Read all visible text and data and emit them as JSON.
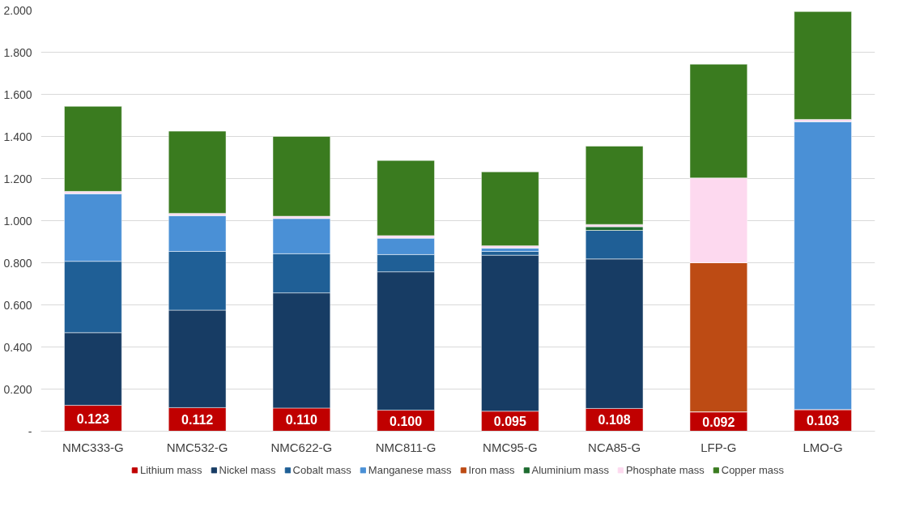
{
  "chart_data": {
    "type": "bar",
    "stacked": true,
    "categories": [
      "NMC333-G",
      "NMC532-G",
      "NMC622-G",
      "NMC811-G",
      "NMC95-G",
      "NCA85-G",
      "LFP-G",
      "LMO-G"
    ],
    "series": [
      {
        "name": "Lithium mass",
        "color": "#c00000",
        "values": [
          0.123,
          0.112,
          0.11,
          0.1,
          0.095,
          0.108,
          0.092,
          0.103
        ],
        "value_labels": [
          "0.123",
          "0.112",
          "0.110",
          "0.100",
          "0.095",
          "0.108",
          "0.092",
          "0.103"
        ]
      },
      {
        "name": "Nickel mass",
        "color": "#173c64",
        "values": [
          0.345,
          0.463,
          0.547,
          0.657,
          0.741,
          0.71,
          0,
          0
        ]
      },
      {
        "name": "Cobalt mass",
        "color": "#1f5f96",
        "values": [
          0.339,
          0.279,
          0.186,
          0.082,
          0.018,
          0.136,
          0,
          0
        ]
      },
      {
        "name": "Manganese mass",
        "color": "#4a90d6",
        "values": [
          0.322,
          0.171,
          0.168,
          0.079,
          0.017,
          0,
          0,
          1.368
        ]
      },
      {
        "name": "Iron mass",
        "color": "#bd4b14",
        "values": [
          0,
          0,
          0,
          0,
          0,
          0,
          0.708,
          0
        ]
      },
      {
        "name": "Aluminium mass",
        "color": "#1d6b2f",
        "values": [
          0,
          0,
          0,
          0,
          0,
          0.017,
          0,
          0
        ]
      },
      {
        "name": "Phosphate mass",
        "color": "#fdd9ef",
        "values": [
          0.01,
          0.01,
          0.01,
          0.011,
          0.01,
          0.011,
          0.403,
          0.01
        ]
      },
      {
        "name": "Copper mass",
        "color": "#3a7b1f",
        "values": [
          0.404,
          0.39,
          0.379,
          0.357,
          0.351,
          0.372,
          0.54,
          0.512
        ]
      }
    ],
    "ylim": [
      0,
      2.0
    ],
    "yticks": [
      {
        "value": 0,
        "label": "-"
      },
      {
        "value": 0.2,
        "label": "0.200"
      },
      {
        "value": 0.4,
        "label": "0.400"
      },
      {
        "value": 0.6,
        "label": "0.600"
      },
      {
        "value": 0.8,
        "label": "0.800"
      },
      {
        "value": 1.0,
        "label": "1.000"
      },
      {
        "value": 1.2,
        "label": "1.200"
      },
      {
        "value": 1.4,
        "label": "1.400"
      },
      {
        "value": 1.6,
        "label": "1.600"
      },
      {
        "value": 1.8,
        "label": "1.800"
      },
      {
        "value": 2.0,
        "label": "2.000"
      }
    ],
    "grid": "y",
    "legend": "bottom"
  }
}
